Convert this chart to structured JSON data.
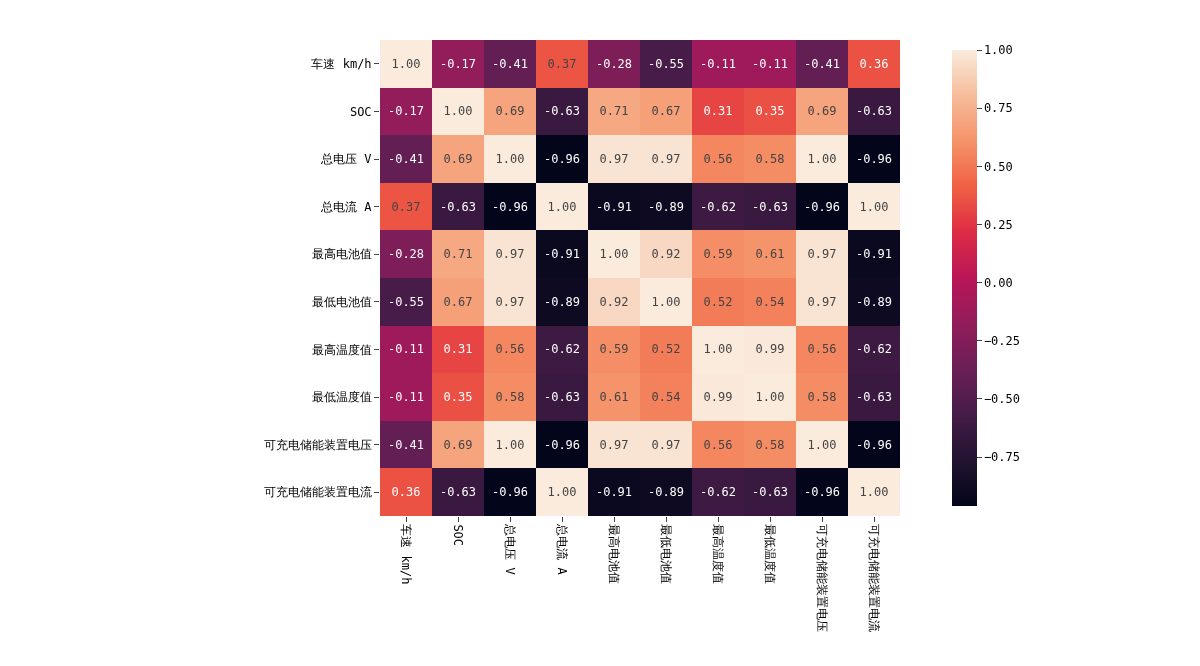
{
  "chart_data": {
    "type": "heatmap",
    "categories": [
      "车速 km/h",
      "SOC",
      "总电压 V",
      "总电流 A",
      "最高电池值",
      "最低电池值",
      "最高温度值",
      "最低温度值",
      "可充电储能装置电压",
      "可充电储能装置电流"
    ],
    "y_categories": [
      "车速 km/h",
      "SOC",
      "总电压 V",
      "总电流 A",
      "最高电池值",
      "最低电池值",
      "最高温度值",
      "最低温度值",
      "可充电储能装置电压",
      "可充电储能装置电流"
    ],
    "cells": [
      [
        1.0,
        -0.17,
        -0.41,
        0.37,
        -0.28,
        -0.55,
        -0.11,
        -0.11,
        -0.41,
        0.36
      ],
      [
        -0.17,
        1.0,
        0.69,
        -0.63,
        0.71,
        0.67,
        0.31,
        0.35,
        0.69,
        -0.63
      ],
      [
        -0.41,
        0.69,
        1.0,
        -0.96,
        0.97,
        0.97,
        0.56,
        0.58,
        1.0,
        -0.96
      ],
      [
        0.37,
        -0.63,
        -0.96,
        1.0,
        -0.91,
        -0.89,
        -0.62,
        -0.63,
        -0.96,
        1.0
      ],
      [
        -0.28,
        0.71,
        0.97,
        -0.91,
        1.0,
        0.92,
        0.59,
        0.61,
        0.97,
        -0.91
      ],
      [
        -0.55,
        0.67,
        0.97,
        -0.89,
        0.92,
        1.0,
        0.52,
        0.54,
        0.97,
        -0.89
      ],
      [
        -0.11,
        0.31,
        0.56,
        -0.62,
        0.59,
        0.52,
        1.0,
        0.99,
        0.56,
        -0.62
      ],
      [
        -0.11,
        0.35,
        0.58,
        -0.63,
        0.61,
        0.54,
        0.99,
        1.0,
        0.58,
        -0.63
      ],
      [
        -0.41,
        0.69,
        1.0,
        -0.96,
        0.97,
        0.97,
        0.56,
        0.58,
        1.0,
        -0.96
      ],
      [
        0.36,
        -0.63,
        -0.96,
        1.0,
        -0.91,
        -0.89,
        -0.62,
        -0.63,
        -0.96,
        1.0
      ]
    ],
    "cell_labels": [
      [
        "1.00",
        "-0.17",
        "-0.41",
        "0.37",
        "-0.28",
        "-0.55",
        "-0.11",
        "-0.11",
        "-0.41",
        "0.36"
      ],
      [
        "-0.17",
        "1.00",
        "0.69",
        "-0.63",
        "0.71",
        "0.67",
        "0.31",
        "0.35",
        "0.69",
        "-0.63"
      ],
      [
        "-0.41",
        "0.69",
        "1.00",
        "-0.96",
        "0.97",
        "0.97",
        "0.56",
        "0.58",
        "1.00",
        "-0.96"
      ],
      [
        "0.37",
        "-0.63",
        "-0.96",
        "1.00",
        "-0.91",
        "-0.89",
        "-0.62",
        "-0.63",
        "-0.96",
        "1.00"
      ],
      [
        "-0.28",
        "0.71",
        "0.97",
        "-0.91",
        "1.00",
        "0.92",
        "0.59",
        "0.61",
        "0.97",
        "-0.91"
      ],
      [
        "-0.55",
        "0.67",
        "0.97",
        "-0.89",
        "0.92",
        "1.00",
        "0.52",
        "0.54",
        "0.97",
        "-0.89"
      ],
      [
        "-0.11",
        "0.31",
        "0.56",
        "-0.62",
        "0.59",
        "0.52",
        "1.00",
        "0.99",
        "0.56",
        "-0.62"
      ],
      [
        "-0.11",
        "0.35",
        "0.58",
        "-0.63",
        "0.61",
        "0.54",
        "0.99",
        "1.00",
        "0.58",
        "-0.63"
      ],
      [
        "-0.41",
        "0.69",
        "1.00",
        "-0.96",
        "0.97",
        "0.97",
        "0.56",
        "0.58",
        "1.00",
        "-0.96"
      ],
      [
        "0.36",
        "-0.63",
        "-0.96",
        "1.00",
        "-0.91",
        "-0.89",
        "-0.62",
        "-0.63",
        "-0.96",
        "1.00"
      ]
    ],
    "clim": [
      -0.96,
      1.0
    ],
    "cticks": [
      {
        "value": -0.75,
        "label": "−0.75"
      },
      {
        "value": -0.5,
        "label": "−0.50"
      },
      {
        "value": -0.25,
        "label": "−0.25"
      },
      {
        "value": 0,
        "label": "0.00"
      },
      {
        "value": 0.25,
        "label": "0.25"
      },
      {
        "value": 0.5,
        "label": "0.50"
      },
      {
        "value": 0.75,
        "label": "0.75"
      },
      {
        "value": 1.0,
        "label": "1.00"
      }
    ],
    "data_labels": true
  }
}
